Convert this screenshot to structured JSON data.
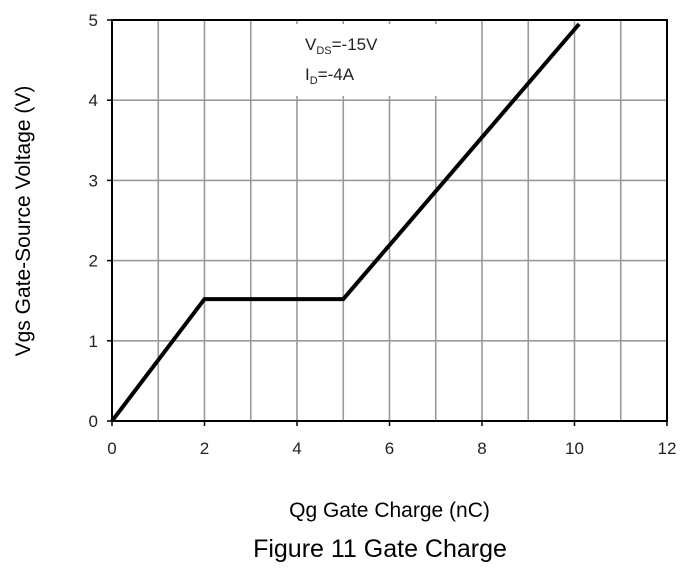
{
  "chart_data": {
    "type": "line",
    "title": "",
    "xlabel": "Qg Gate Charge (nC)",
    "ylabel": "Vgs Gate-Source Voltage (V)",
    "xlim": [
      0,
      12
    ],
    "ylim": [
      0,
      5
    ],
    "x_ticks": [
      0,
      2,
      4,
      6,
      8,
      10,
      12
    ],
    "y_ticks": [
      0,
      1,
      2,
      3,
      4,
      5
    ],
    "x_grid_step": 1,
    "y_grid_step": 1,
    "grid": true,
    "legend": "none",
    "series": [
      {
        "x": [
          0,
          2,
          5,
          10.1
        ],
        "y": [
          0,
          1.52,
          1.52,
          4.95
        ]
      }
    ],
    "annotations": [
      {
        "main": "V",
        "sub": "DS",
        "rest": "=-15V"
      },
      {
        "main": "I",
        "sub": "D",
        "rest": "=-4A"
      }
    ],
    "colors": {
      "line": "#000000",
      "grid": "#9a9a9a",
      "frame": "#000000"
    }
  },
  "caption": "Figure 11 Gate Charge"
}
